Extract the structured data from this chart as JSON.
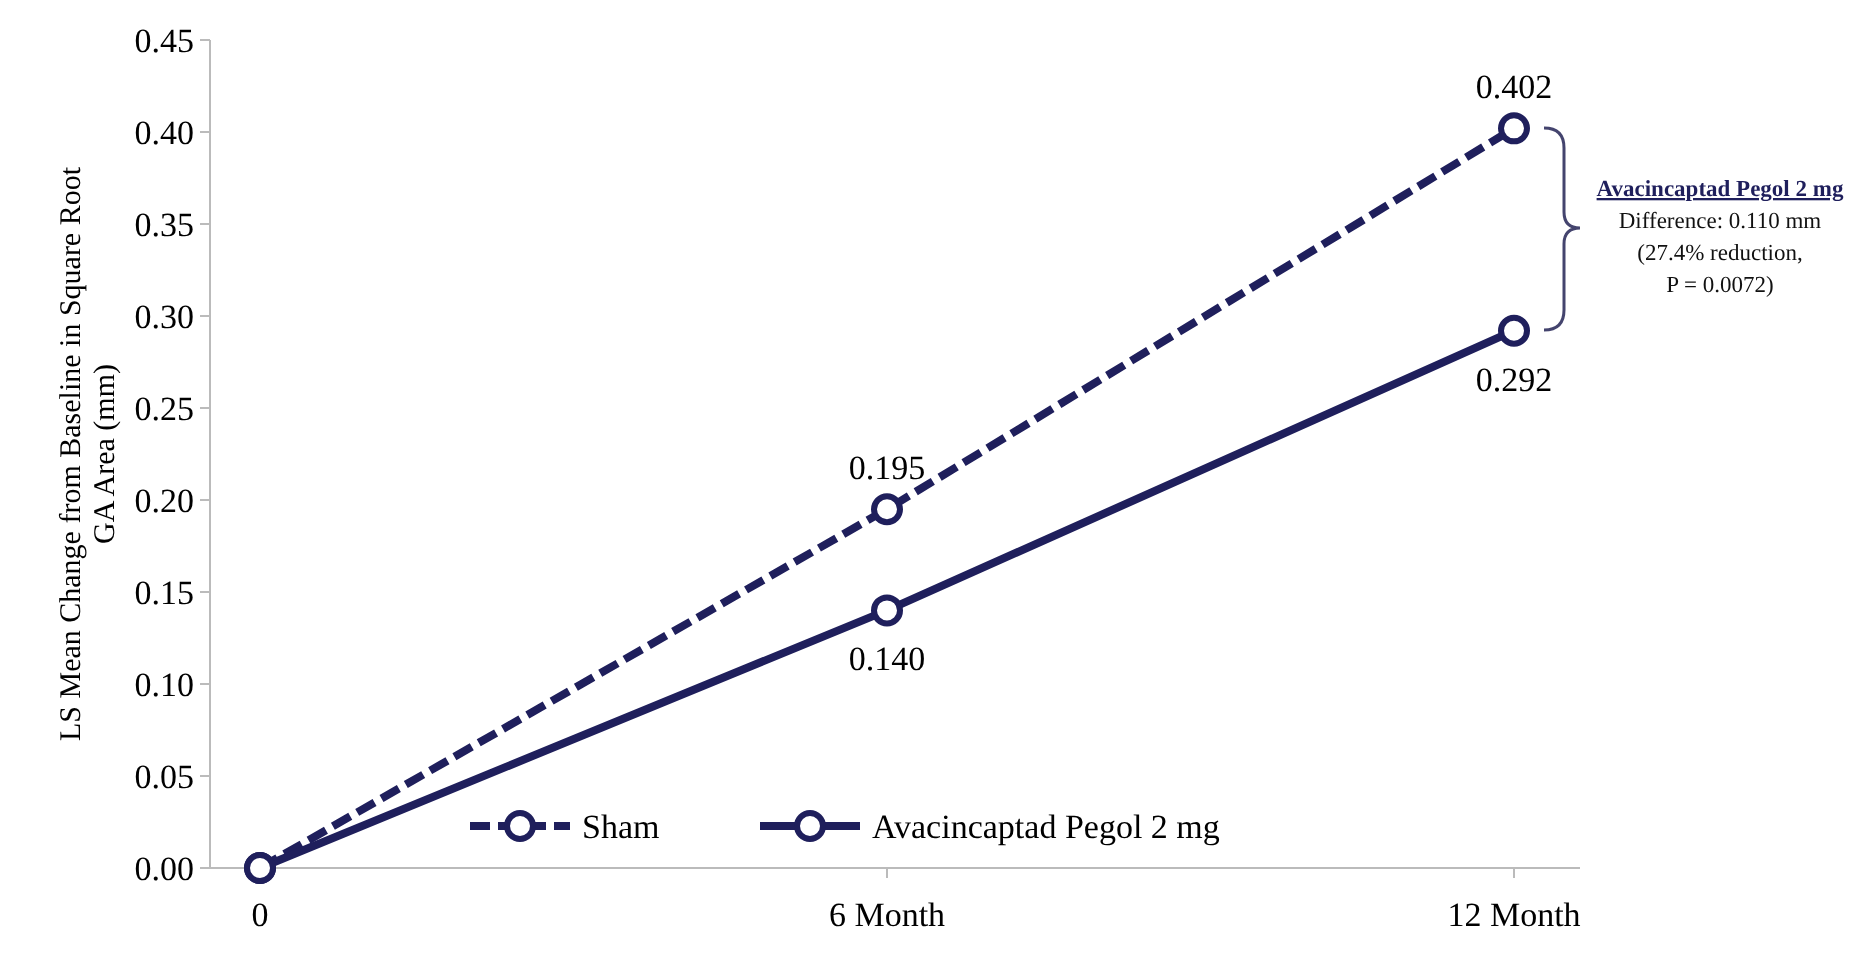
{
  "chart_data": {
    "type": "line",
    "ylabel": "LS Mean Change from Baseline  in Square Root GA Area (mm)",
    "categories": [
      "0",
      "6 Month",
      "12 Month"
    ],
    "series": [
      {
        "name": "Sham",
        "color": "#1f1f5c",
        "values": [
          0,
          0.195,
          0.402
        ],
        "line_style": "dashed",
        "value_labels": [
          null,
          "0.195",
          "0.402"
        ]
      },
      {
        "name": "Avacincaptad Pegol 2 mg",
        "color": "#1f1f5c",
        "values": [
          0,
          0.14,
          0.292
        ],
        "line_style": "solid",
        "value_labels": [
          null,
          "0.140",
          "0.292"
        ]
      }
    ],
    "ylim": [
      0,
      0.45
    ],
    "yticks": [
      {
        "value": 0,
        "label": "0.00"
      },
      {
        "value": 0.05,
        "label": "0.05"
      },
      {
        "value": 0.1,
        "label": "0.10"
      },
      {
        "value": 0.15,
        "label": "0.15"
      },
      {
        "value": 0.2,
        "label": "0.20"
      },
      {
        "value": 0.25,
        "label": "0.25"
      },
      {
        "value": 0.3,
        "label": "0.30"
      },
      {
        "value": 0.35,
        "label": "0.35"
      },
      {
        "value": 0.4,
        "label": "0.40"
      },
      {
        "value": 0.45,
        "label": "0.45"
      }
    ],
    "annotations": [
      "Avacincaptad Pegol 2 mg",
      "Difference: 0.110 mm",
      "(27.4% reduction,",
      "P = 0.0072)"
    ],
    "marker": "circle",
    "legend": "bottom",
    "grid": false
  }
}
